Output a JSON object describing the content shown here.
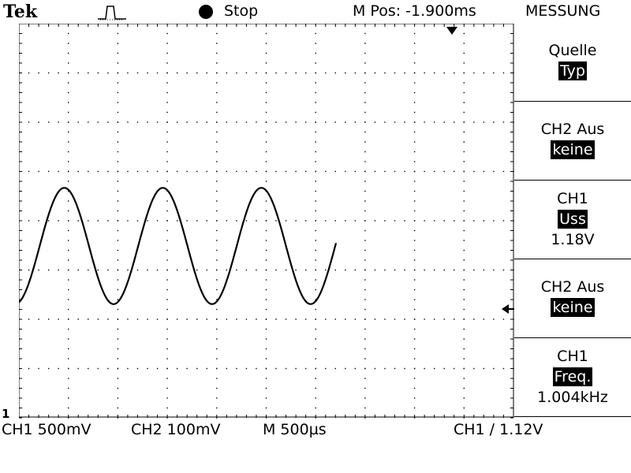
{
  "header": {
    "brand": "Tek",
    "trigger_icon": "pulse-trigger-icon",
    "run_state": "Stop",
    "m_pos": "M Pos: -1.900ms",
    "menu_title": "MESSUNG"
  },
  "menu": {
    "items": [
      {
        "line1": "Quelle",
        "value": "Typ",
        "reading": ""
      },
      {
        "line1": "CH2 Aus",
        "value": "keine",
        "reading": ""
      },
      {
        "line1": "CH1",
        "value": "Uss",
        "reading": "1.18V"
      },
      {
        "line1": "CH2 Aus",
        "value": "keine",
        "reading": ""
      },
      {
        "line1": "CH1",
        "value": "Freq.",
        "reading": "1.004kHz"
      }
    ]
  },
  "status": {
    "ch1": "CH1 500mV",
    "ch2": "CH2 100mV",
    "timebase": "M 500µs",
    "trigger": "CH1 ∕ 1.12V",
    "ground_marker": "1"
  },
  "waveform": {
    "type": "sine",
    "frequency_khz": 1.004,
    "amplitude_pp_v": 1.18,
    "volts_per_div": 0.5,
    "time_per_div_us": 500
  }
}
